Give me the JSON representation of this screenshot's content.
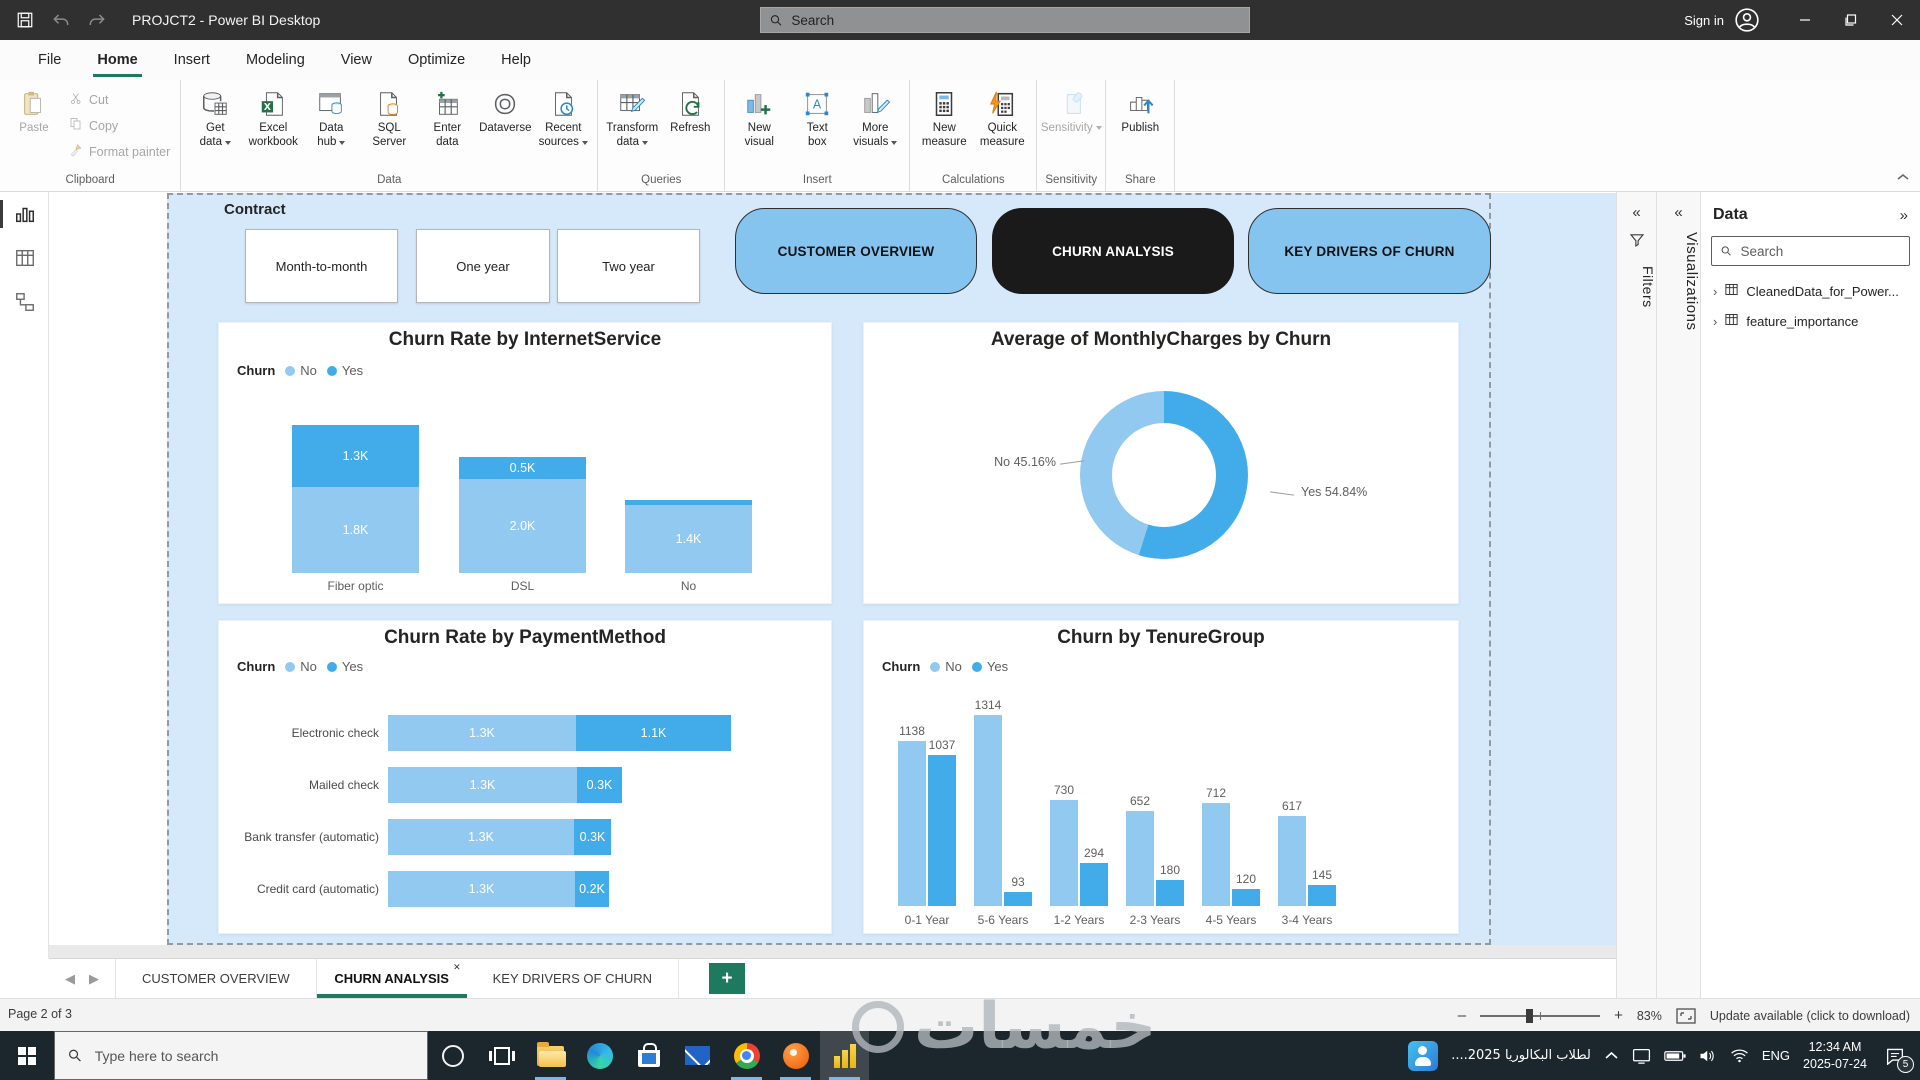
{
  "window": {
    "title": "PROJCT2 - Power BI Desktop",
    "search_placeholder": "Search",
    "sign_in_label": "Sign in"
  },
  "menubar": {
    "items": [
      "File",
      "Home",
      "Insert",
      "Modeling",
      "View",
      "Optimize",
      "Help"
    ],
    "active_index": 1
  },
  "ribbon": {
    "groups": [
      {
        "label": "Clipboard",
        "buttons": [
          {
            "name": "paste",
            "lines": [
              "Paste"
            ],
            "icon": "clipboard",
            "size": "large",
            "disabled": true
          },
          {
            "name": "cut",
            "lines": [
              "Cut"
            ],
            "icon": "scissors",
            "size": "small",
            "disabled": true
          },
          {
            "name": "copy",
            "lines": [
              "Copy"
            ],
            "icon": "copy",
            "size": "small",
            "disabled": true
          },
          {
            "name": "format-painter",
            "lines": [
              "Format painter"
            ],
            "icon": "brush",
            "size": "small",
            "disabled": true
          }
        ]
      },
      {
        "label": "Data",
        "buttons": [
          {
            "name": "get-data",
            "lines": [
              "Get",
              "data"
            ],
            "icon": "database",
            "dropdown": true
          },
          {
            "name": "excel-workbook",
            "lines": [
              "Excel",
              "workbook"
            ],
            "icon": "excel"
          },
          {
            "name": "data-hub",
            "lines": [
              "Data",
              "hub"
            ],
            "icon": "datahub",
            "dropdown": true
          },
          {
            "name": "sql-server",
            "lines": [
              "SQL",
              "Server"
            ],
            "icon": "sql"
          },
          {
            "name": "enter-data",
            "lines": [
              "Enter",
              "data"
            ],
            "icon": "enterdata"
          },
          {
            "name": "dataverse",
            "lines": [
              "Dataverse"
            ],
            "icon": "dataverse"
          },
          {
            "name": "recent-sources",
            "lines": [
              "Recent",
              "sources"
            ],
            "icon": "recent",
            "dropdown": true
          }
        ]
      },
      {
        "label": "Queries",
        "buttons": [
          {
            "name": "transform-data",
            "lines": [
              "Transform",
              "data"
            ],
            "icon": "transform",
            "dropdown": true
          },
          {
            "name": "refresh",
            "lines": [
              "Refresh"
            ],
            "icon": "refresh"
          }
        ]
      },
      {
        "label": "Insert",
        "buttons": [
          {
            "name": "new-visual",
            "lines": [
              "New",
              "visual"
            ],
            "icon": "newvisual"
          },
          {
            "name": "text-box",
            "lines": [
              "Text",
              "box"
            ],
            "icon": "textbox"
          },
          {
            "name": "more-visuals",
            "lines": [
              "More",
              "visuals"
            ],
            "icon": "morevisuals",
            "dropdown": true
          }
        ]
      },
      {
        "label": "Calculations",
        "buttons": [
          {
            "name": "new-measure",
            "lines": [
              "New",
              "measure"
            ],
            "icon": "calculator"
          },
          {
            "name": "quick-measure",
            "lines": [
              "Quick",
              "measure"
            ],
            "icon": "quickmeasure"
          }
        ]
      },
      {
        "label": "Sensitivity",
        "buttons": [
          {
            "name": "sensitivity",
            "lines": [
              "Sensitivity"
            ],
            "icon": "sensitivity",
            "dropdown": true,
            "disabled": true
          }
        ]
      },
      {
        "label": "Share",
        "buttons": [
          {
            "name": "publish",
            "lines": [
              "Publish"
            ],
            "icon": "publish"
          }
        ]
      }
    ]
  },
  "slicer": {
    "title": "Contract",
    "options": [
      "Month-to-month",
      "One year",
      "Two year"
    ]
  },
  "nav_buttons": [
    {
      "label": "CUSTOMER OVERVIEW",
      "variant": "blue"
    },
    {
      "label": "CHURN ANALYSIS",
      "variant": "black"
    },
    {
      "label": "KEY DRIVERS OF CHURN",
      "variant": "blue"
    }
  ],
  "chart_data": [
    {
      "id": "internet-service",
      "type": "bar",
      "stacked": true,
      "title": "Churn Rate by InternetService",
      "legend_title": "Churn",
      "legend_position": "top-left",
      "grid": false,
      "categories": [
        "Fiber optic",
        "DSL",
        "No"
      ],
      "series": [
        {
          "name": "No",
          "color_key": "bar_no",
          "values": [
            1797,
            1962,
            1413
          ],
          "data_labels": [
            "1.8K",
            "2.0K",
            "1.4K"
          ]
        },
        {
          "name": "Yes",
          "color_key": "bar_yes",
          "values": [
            1297,
            459,
            113
          ],
          "data_labels": [
            "1.3K",
            "0.5K",
            ""
          ]
        }
      ]
    },
    {
      "id": "monthly-charges",
      "type": "pie",
      "title": "Average of MonthlyCharges by Churn",
      "slices": [
        {
          "name": "Yes",
          "value_pct": 54.84,
          "label": "Yes 54.84%",
          "color_key": "bar_yes"
        },
        {
          "name": "No",
          "value_pct": 45.16,
          "label": "No 45.16%",
          "color_key": "bar_no"
        }
      ]
    },
    {
      "id": "payment-method",
      "type": "bar",
      "stacked": true,
      "orientation": "horizontal",
      "title": "Churn Rate by PaymentMethod",
      "legend_title": "Churn",
      "legend_position": "top-left",
      "grid": false,
      "categories": [
        "Electronic check",
        "Mailed check",
        "Bank transfer (automatic)",
        "Credit card (automatic)"
      ],
      "series": [
        {
          "name": "No",
          "color_key": "bar_no",
          "values": [
            1294,
            1304,
            1286,
            1290
          ],
          "data_labels": [
            "1.3K",
            "1.3K",
            "1.3K",
            "1.3K"
          ]
        },
        {
          "name": "Yes",
          "color_key": "bar_yes",
          "values": [
            1071,
            308,
            258,
            232
          ],
          "data_labels": [
            "1.1K",
            "0.3K",
            "0.3K",
            "0.2K"
          ]
        }
      ]
    },
    {
      "id": "tenure-group",
      "type": "bar",
      "grouped": true,
      "title": "Churn by TenureGroup",
      "legend_title": "Churn",
      "legend_position": "top-left",
      "grid": false,
      "categories": [
        "0-1 Year",
        "5-6 Years",
        "1-2 Years",
        "2-3 Years",
        "4-5 Years",
        "3-4 Years"
      ],
      "series": [
        {
          "name": "No",
          "color_key": "bar_no",
          "values": [
            1138,
            1314,
            730,
            652,
            712,
            617
          ]
        },
        {
          "name": "Yes",
          "color_key": "bar_yes",
          "values": [
            1037,
            93,
            294,
            180,
            120,
            145
          ]
        }
      ]
    }
  ],
  "panels": {
    "filters_label": "Filters",
    "visualizations_label": "Visualizations",
    "data_panel": {
      "title": "Data",
      "search_placeholder": "Search",
      "tables": [
        "CleanedData_for_Power...",
        "feature_importance"
      ]
    }
  },
  "pages_bar": {
    "tabs": [
      {
        "label": "CUSTOMER OVERVIEW",
        "active": false
      },
      {
        "label": "CHURN ANALYSIS",
        "active": true
      },
      {
        "label": "KEY DRIVERS OF CHURN",
        "active": false
      }
    ],
    "add_label": "+"
  },
  "status_bar": {
    "page_indicator": "Page 2 of 3",
    "zoom_level": "83%",
    "update_text": "Update available (click to download)"
  },
  "watermark": {
    "text": "خمسات"
  },
  "taskbar": {
    "search_placeholder": "Type here to search",
    "apps": [
      {
        "name": "cortana",
        "active": false
      },
      {
        "name": "task-view",
        "active": false
      },
      {
        "name": "file-explorer",
        "active": true
      },
      {
        "name": "edge",
        "active": false
      },
      {
        "name": "store",
        "active": false
      },
      {
        "name": "mail",
        "active": false
      },
      {
        "name": "chrome",
        "active": true
      },
      {
        "name": "avast",
        "active": true
      },
      {
        "name": "power-bi",
        "active": true,
        "focused": true
      }
    ],
    "tray_app_text": "لطلاب البكالوريا 2025....",
    "language": "ENG",
    "time": "12:34 AM",
    "date": "2025-07-24",
    "notification_count": "5"
  },
  "colors": {
    "accent": "#1e7a5e",
    "bar_no": "#92c9f1",
    "bar_yes": "#41ace9",
    "nav_blue": "#85c4ef",
    "nav_black": "#1a1a1a",
    "page_bg": "#d6e9fa"
  }
}
